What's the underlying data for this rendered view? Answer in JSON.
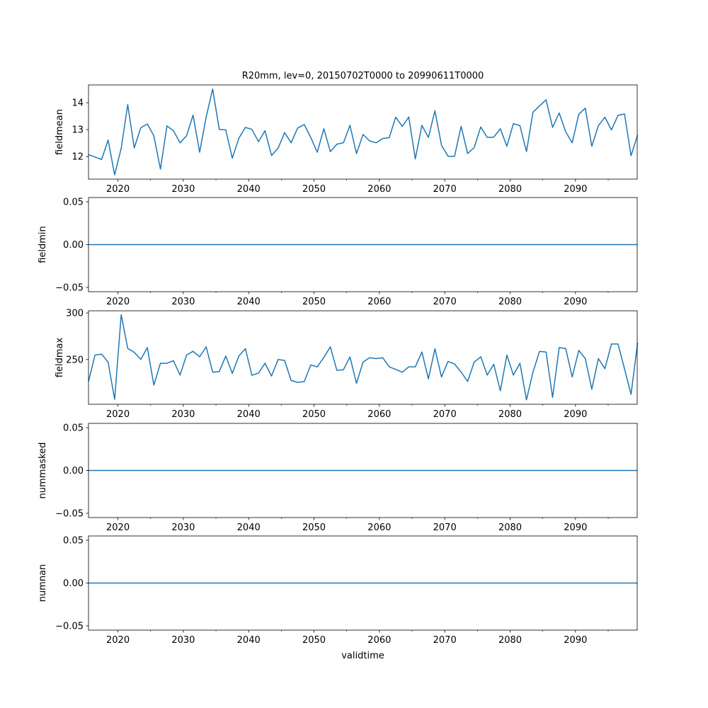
{
  "chart_data": [
    {
      "type": "line",
      "title": "R20mm, lev=0, 20150702T0000 to 20990611T0000",
      "ylabel": "fieldmean",
      "xlabel": "",
      "xlim": [
        2015.5,
        2099.44
      ],
      "ylim": [
        11.16,
        14.66
      ],
      "yticks": [
        12,
        13,
        14
      ],
      "ytick_labels": [
        "12",
        "13",
        "14"
      ],
      "color": "#1f77b4",
      "x_start": 2015.5,
      "x_step": 1,
      "values": [
        12.07,
        11.98,
        11.89,
        12.61,
        11.32,
        12.31,
        13.93,
        12.32,
        13.07,
        13.21,
        12.77,
        11.53,
        13.14,
        12.96,
        12.51,
        12.77,
        13.54,
        12.16,
        13.47,
        14.51,
        13.01,
        12.99,
        11.94,
        12.68,
        13.08,
        13.01,
        12.55,
        12.96,
        12.04,
        12.31,
        12.89,
        12.51,
        13.06,
        13.19,
        12.71,
        12.16,
        13.03,
        12.18,
        12.46,
        12.51,
        13.16,
        12.11,
        12.82,
        12.58,
        12.51,
        12.67,
        12.7,
        13.46,
        13.12,
        13.47,
        11.91,
        13.16,
        12.71,
        13.7,
        12.42,
        12.01,
        12.01,
        13.12,
        12.11,
        12.33,
        13.1,
        12.71,
        12.72,
        13.03,
        12.38,
        13.22,
        13.15,
        12.18,
        13.65,
        13.88,
        14.11,
        13.08,
        13.62,
        12.92,
        12.51,
        13.57,
        13.8,
        12.38,
        13.15,
        13.46,
        12.99,
        13.53,
        13.58,
        12.03,
        12.8
      ]
    },
    {
      "type": "line",
      "ylabel": "fieldmin",
      "xlim": [
        2015.5,
        2099.44
      ],
      "ylim": [
        -0.055,
        0.055
      ],
      "yticks": [
        -0.05,
        0.0,
        0.05
      ],
      "ytick_labels": [
        "−0.05",
        "0.00",
        "0.05"
      ],
      "color": "#1f77b4",
      "x_start": 2015.5,
      "x_step": 1,
      "constant": 0.0
    },
    {
      "type": "line",
      "ylabel": "fieldmax",
      "xlim": [
        2015.5,
        2099.44
      ],
      "ylim": [
        202,
        302.3
      ],
      "yticks": [
        250,
        300
      ],
      "ytick_labels": [
        "250",
        "300"
      ],
      "color": "#1f77b4",
      "x_start": 2015.5,
      "x_step": 1,
      "values": [
        226.5,
        254.8,
        255.8,
        247.2,
        207.3,
        298.2,
        261.9,
        257.8,
        250.2,
        262.9,
        222.5,
        246.0,
        246.0,
        248.7,
        233.3,
        254.8,
        258.8,
        253.0,
        263.6,
        236.4,
        237.1,
        253.8,
        235.1,
        253.8,
        261.6,
        233.1,
        235.4,
        246.0,
        232.3,
        250.0,
        249.0,
        227.5,
        225.5,
        226.3,
        244.2,
        242.2,
        252.3,
        263.6,
        238.4,
        239.1,
        252.8,
        224.5,
        247.2,
        252.0,
        251.0,
        252.0,
        242.2,
        239.4,
        236.4,
        242.2,
        242.2,
        258.1,
        229.3,
        261.6,
        231.3,
        248.0,
        245.2,
        236.6,
        226.5,
        247.2,
        253.0,
        233.3,
        245.0,
        216.4,
        254.8,
        233.3,
        246.0,
        206.8,
        236.6,
        258.8,
        258.1,
        209.3,
        262.9,
        261.9,
        231.3,
        259.8,
        251.0,
        218.2,
        251.0,
        240.2,
        266.7,
        266.7,
        240.0,
        212.6,
        268.0
      ]
    },
    {
      "type": "line",
      "ylabel": "nummasked",
      "xlim": [
        2015.5,
        2099.44
      ],
      "ylim": [
        -0.055,
        0.055
      ],
      "yticks": [
        -0.05,
        0.0,
        0.05
      ],
      "ytick_labels": [
        "−0.05",
        "0.00",
        "0.05"
      ],
      "color": "#1f77b4",
      "x_start": 2015.5,
      "x_step": 1,
      "constant": 0.0
    },
    {
      "type": "line",
      "ylabel": "numnan",
      "xlabel": "validtime",
      "xlim": [
        2015.5,
        2099.44
      ],
      "ylim": [
        -0.055,
        0.055
      ],
      "yticks": [
        -0.05,
        0.0,
        0.05
      ],
      "ytick_labels": [
        "−0.05",
        "0.00",
        "0.05"
      ],
      "color": "#1f77b4",
      "x_start": 2015.5,
      "x_step": 1,
      "constant": 0.0
    }
  ],
  "xaxis": {
    "major_ticks": [
      2020,
      2030,
      2040,
      2050,
      2060,
      2070,
      2080,
      2090
    ],
    "major_labels": [
      "2020",
      "2030",
      "2040",
      "2050",
      "2060",
      "2070",
      "2080",
      "2090"
    ],
    "minor_ticks": [
      2025,
      2035,
      2045,
      2055,
      2065,
      2075,
      2085,
      2095
    ]
  }
}
